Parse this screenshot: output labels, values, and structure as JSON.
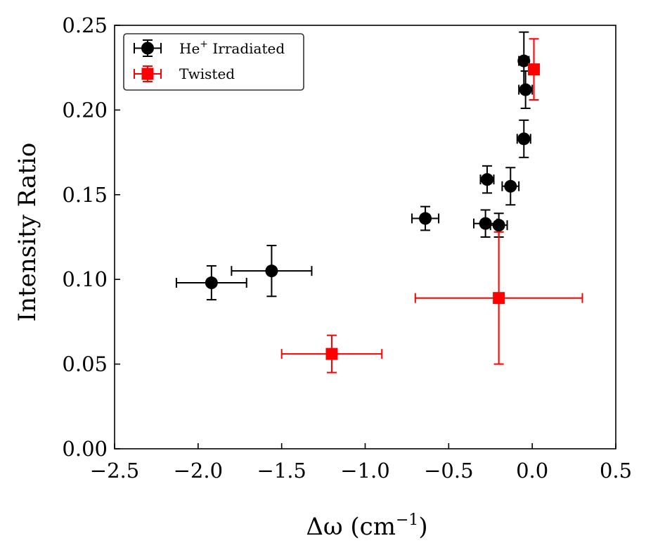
{
  "chart_data": {
    "type": "scatter",
    "title": "",
    "xlabel": "Δω (cm⁻¹)",
    "xlabel_main": "Δω (cm",
    "xlabel_sup": "−1",
    "xlabel_close": ")",
    "ylabel": "Intensity Ratio",
    "xlim": [
      -2.5,
      0.5
    ],
    "ylim": [
      0.0,
      0.25
    ],
    "xticks": [
      -2.5,
      -2.0,
      -1.5,
      -1.0,
      -0.5,
      0.0,
      0.5
    ],
    "xtick_labels": [
      "−2.5",
      "−2.0",
      "−1.5",
      "−1.0",
      "−0.5",
      "0.0",
      "0.5"
    ],
    "yticks": [
      0.0,
      0.05,
      0.1,
      0.15,
      0.2,
      0.25
    ],
    "ytick_labels": [
      "0.00",
      "0.05",
      "0.10",
      "0.15",
      "0.20",
      "0.25"
    ],
    "grid": false,
    "legend_position": "top-left",
    "series": [
      {
        "name": "He⁺ Irradiated",
        "legend_main": "He",
        "legend_sup": "+",
        "legend_rest": " Irradiated",
        "marker": "circle",
        "color": "#000000",
        "points": [
          {
            "x": -1.92,
            "y": 0.098,
            "xerr": 0.21,
            "yerr": 0.01
          },
          {
            "x": -1.56,
            "y": 0.105,
            "xerr": 0.24,
            "yerr": 0.015
          },
          {
            "x": -0.64,
            "y": 0.136,
            "xerr": 0.08,
            "yerr": 0.007
          },
          {
            "x": -0.28,
            "y": 0.133,
            "xerr": 0.07,
            "yerr": 0.008
          },
          {
            "x": -0.2,
            "y": 0.132,
            "xerr": 0.05,
            "yerr": 0.007
          },
          {
            "x": -0.27,
            "y": 0.159,
            "xerr": 0.04,
            "yerr": 0.008
          },
          {
            "x": -0.13,
            "y": 0.155,
            "xerr": 0.05,
            "yerr": 0.011
          },
          {
            "x": -0.05,
            "y": 0.183,
            "xerr": 0.04,
            "yerr": 0.011
          },
          {
            "x": -0.04,
            "y": 0.212,
            "xerr": 0.04,
            "yerr": 0.011
          },
          {
            "x": -0.05,
            "y": 0.229,
            "xerr": 0.03,
            "yerr": 0.017
          }
        ]
      },
      {
        "name": "Twisted",
        "legend_main": "Twisted",
        "legend_sup": "",
        "legend_rest": "",
        "marker": "square",
        "color": "#ff0000",
        "points": [
          {
            "x": -1.2,
            "y": 0.056,
            "xerr": 0.3,
            "yerr": 0.011
          },
          {
            "x": -0.2,
            "y": 0.089,
            "xerr": 0.5,
            "yerr": 0.039
          },
          {
            "x": 0.01,
            "y": 0.224,
            "xerr": 0.0,
            "yerr": 0.018
          }
        ]
      }
    ]
  }
}
